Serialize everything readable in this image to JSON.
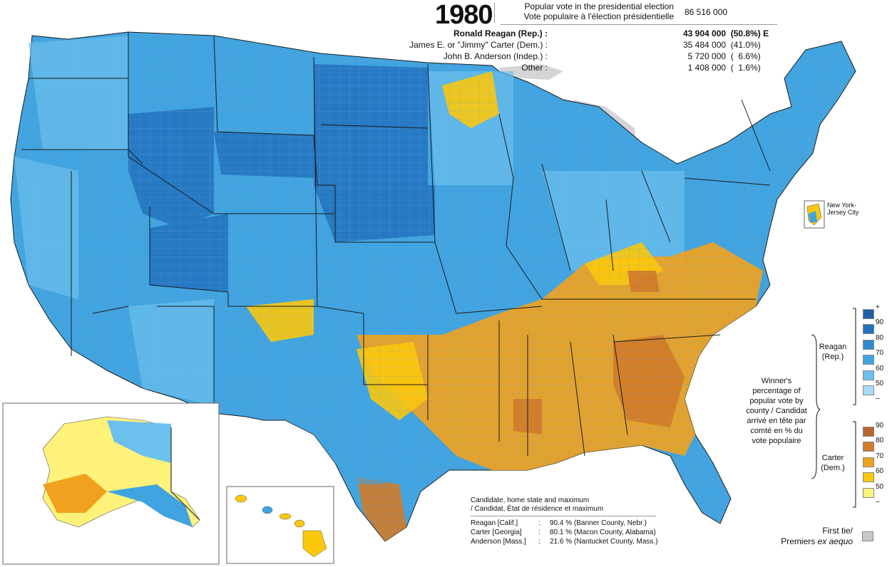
{
  "header": {
    "year": "1980",
    "popular_vote_en": "Popular vote in the presidential election",
    "popular_vote_fr": "Vote populaire à l'élection présidentielle",
    "total_votes": "86 516 000"
  },
  "results": [
    {
      "name": "Ronald Reagan (Rep.) :",
      "votes": "43 904 000  (50.8%) E",
      "bold": true
    },
    {
      "name": "James E. or \"Jimmy\" Carter (Dem.) :",
      "votes": "35 484 000  (41.0%)",
      "bold": false
    },
    {
      "name": "John B. Anderson (Indep.) :",
      "votes": "  5 720 000  (  6.6%)",
      "bold": false
    },
    {
      "name": "Other :",
      "votes": "  1 408 000  (  1.6%)",
      "bold": false
    }
  ],
  "inset_labels": {
    "nyc": "New York-Jersey City"
  },
  "candidate_max": {
    "heading_en": "Candidate, home state and maximum",
    "heading_fr": "/ Candidat, État de résidence et maximum",
    "rows": [
      {
        "candidate": "Reagan [Calif.]",
        "sep": ":",
        "value": "90.4 % (Banner County, Nebr.)"
      },
      {
        "candidate": "Carter [Georgia]",
        "sep": ":",
        "value": "80.1 % (Macon County, Alabama)"
      },
      {
        "candidate": "Anderson [Mass.]",
        "sep": ":",
        "value": "21.6 % (Nantucket County, Mass.)"
      }
    ]
  },
  "legend": {
    "description_lines": [
      "Winner's",
      "percentage of",
      "popular vote by",
      "county / Candidat",
      "arrivé en tête par",
      "comté en % du",
      "vote populaire"
    ],
    "reagan_label_lines": [
      "Reagan",
      "(Rep.)"
    ],
    "carter_label_lines": [
      "Carter",
      "(Dem.)"
    ],
    "reagan_ticks": [
      "+",
      "90",
      "80",
      "70",
      "60",
      "50",
      "–"
    ],
    "carter_ticks": [
      "90",
      "80",
      "70",
      "60",
      "50",
      "–"
    ],
    "reagan_colors": [
      "#1f5fa8",
      "#2272bf",
      "#2e8ad0",
      "#41a4e0",
      "#6cc0ee",
      "#a8dcf6"
    ],
    "carter_colors": [
      "#b8642a",
      "#d27a28",
      "#f0a21e",
      "#fcc80c",
      "#fff27a"
    ],
    "tie_en": "First tie/",
    "tie_fr": "Premiers ex aequo",
    "tie_color": "#c8c8c8"
  }
}
